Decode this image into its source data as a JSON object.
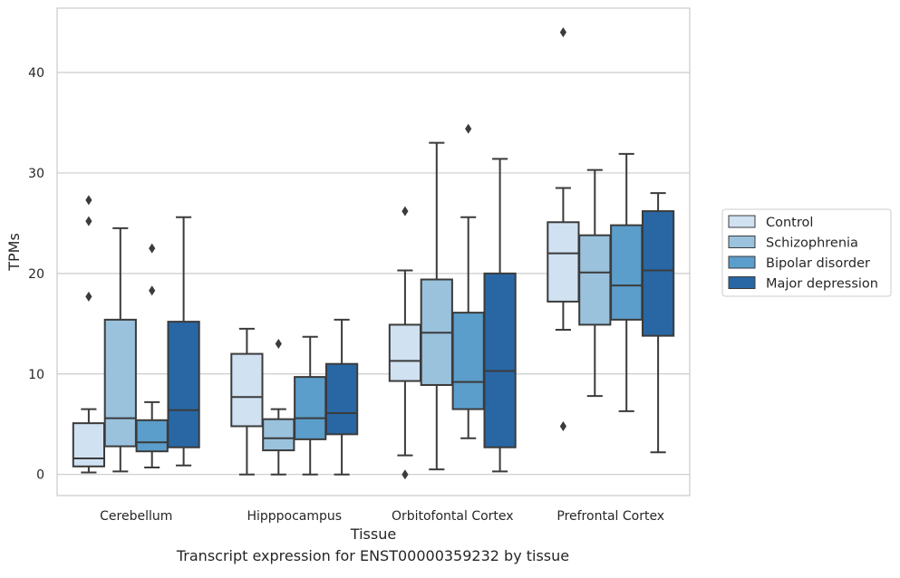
{
  "caption": "Transcript expression for ENST00000359232 by tissue",
  "chart_data": {
    "type": "boxplot",
    "xlabel": "Tissue",
    "ylabel": "TPMs",
    "ylim": [
      -2.1,
      46.4
    ],
    "yticks": [
      0,
      10,
      20,
      30,
      40
    ],
    "grid": "horizontal",
    "legend_position": "center-right",
    "categories": [
      "Cerebellum",
      "Hipppocampus",
      "Orbitofontal Cortex",
      "Prefrontal Cortex"
    ],
    "series": [
      {
        "name": "Control",
        "color": "#d0e1f2",
        "boxes": [
          {
            "whislo": 0.2,
            "q1": 0.8,
            "med": 1.6,
            "q3": 5.1,
            "whishi": 6.5,
            "fliers": [
              17.7,
              25.2,
              27.3
            ]
          },
          {
            "whislo": 0.0,
            "q1": 4.8,
            "med": 7.7,
            "q3": 12.0,
            "whishi": 14.5,
            "fliers": []
          },
          {
            "whislo": 1.9,
            "q1": 9.3,
            "med": 11.3,
            "q3": 14.9,
            "whishi": 20.3,
            "fliers": [
              0.0,
              26.2
            ]
          },
          {
            "whislo": 14.4,
            "q1": 17.2,
            "med": 22.0,
            "q3": 25.1,
            "whishi": 28.5,
            "fliers": [
              4.8,
              44.0
            ]
          }
        ]
      },
      {
        "name": "Schizophrenia",
        "color": "#9ac2dd",
        "boxes": [
          {
            "whislo": 0.3,
            "q1": 2.8,
            "med": 5.6,
            "q3": 15.4,
            "whishi": 24.5,
            "fliers": []
          },
          {
            "whislo": 0.0,
            "q1": 2.4,
            "med": 3.6,
            "q3": 5.5,
            "whishi": 6.5,
            "fliers": [
              13.0
            ]
          },
          {
            "whislo": 0.5,
            "q1": 8.9,
            "med": 14.1,
            "q3": 19.4,
            "whishi": 33.0,
            "fliers": []
          },
          {
            "whislo": 7.8,
            "q1": 14.9,
            "med": 20.1,
            "q3": 23.8,
            "whishi": 30.3,
            "fliers": []
          }
        ]
      },
      {
        "name": "Bipolar disorder",
        "color": "#5b9dcb",
        "boxes": [
          {
            "whislo": 0.7,
            "q1": 2.3,
            "med": 3.2,
            "q3": 5.4,
            "whishi": 7.2,
            "fliers": [
              18.3,
              22.5
            ]
          },
          {
            "whislo": 0.0,
            "q1": 3.5,
            "med": 5.6,
            "q3": 9.7,
            "whishi": 13.7,
            "fliers": []
          },
          {
            "whislo": 3.6,
            "q1": 6.5,
            "med": 9.2,
            "q3": 16.1,
            "whishi": 25.6,
            "fliers": [
              34.4
            ]
          },
          {
            "whislo": 6.3,
            "q1": 15.4,
            "med": 18.8,
            "q3": 24.8,
            "whishi": 31.9,
            "fliers": []
          }
        ]
      },
      {
        "name": "Major depression",
        "color": "#2867a4",
        "boxes": [
          {
            "whislo": 0.9,
            "q1": 2.7,
            "med": 6.4,
            "q3": 15.2,
            "whishi": 25.6,
            "fliers": []
          },
          {
            "whislo": 0.0,
            "q1": 4.0,
            "med": 6.1,
            "q3": 11.0,
            "whishi": 15.4,
            "fliers": []
          },
          {
            "whislo": 0.3,
            "q1": 2.7,
            "med": 10.3,
            "q3": 20.0,
            "whishi": 31.4,
            "fliers": []
          },
          {
            "whislo": 2.2,
            "q1": 13.8,
            "med": 20.3,
            "q3": 26.2,
            "whishi": 28.0,
            "fliers": []
          }
        ]
      }
    ]
  }
}
